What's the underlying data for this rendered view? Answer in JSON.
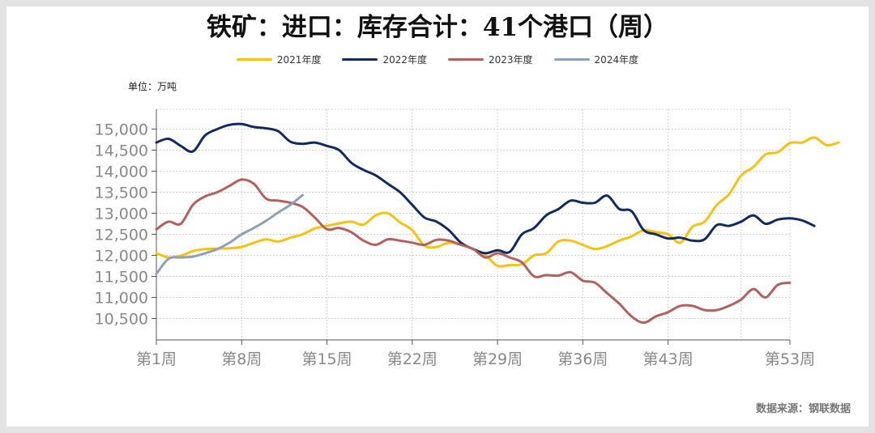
{
  "title": "铁矿：进口：库存合计：41个港口（周）",
  "unit": "单位：万吨",
  "source": "数据来源：钢联数据",
  "chart_data": {
    "type": "line",
    "title": "铁矿：进口：库存合计：41个港口（周）",
    "x_ticks": [
      "第1周",
      "第8周",
      "第15周",
      "第22周",
      "第29周",
      "第36周",
      "第43周",
      "第53周"
    ],
    "x_tick_weeks": [
      1,
      8,
      15,
      22,
      29,
      36,
      43,
      53
    ],
    "y_ticks": [
      "10,500",
      "11,000",
      "11,500",
      "12,000",
      "12,500",
      "13,000",
      "13,500",
      "14,000",
      "14,500",
      "15,000"
    ],
    "y_tick_values": [
      10500,
      11000,
      11500,
      12000,
      12500,
      13000,
      13500,
      14000,
      14500,
      15000
    ],
    "ylim": [
      10100,
      15250
    ],
    "xlim": [
      1,
      53
    ],
    "grid": true,
    "legend_position": "top-center",
    "series": [
      {
        "name": "2021年度",
        "color": "#f5c214",
        "values": [
          12050,
          11950,
          11990,
          12100,
          12150,
          12160,
          12170,
          12200,
          12300,
          12380,
          12330,
          12420,
          12500,
          12640,
          12700,
          12760,
          12800,
          12730,
          12950,
          13000,
          12780,
          12600,
          12230,
          12200,
          12300,
          12250,
          12150,
          12000,
          11750,
          11770,
          11790,
          12000,
          12050,
          12330,
          12350,
          12250,
          12150,
          12220,
          12350,
          12450,
          12600,
          12550,
          12500,
          12300,
          12680,
          12800,
          13200,
          13450,
          13900,
          14100,
          14400,
          14450,
          14670,
          14680,
          14800,
          14620,
          14680
        ]
      },
      {
        "name": "2022年度",
        "color": "#132a61",
        "values": [
          14680,
          14770,
          14600,
          14470,
          14850,
          15000,
          15100,
          15120,
          15050,
          15020,
          14950,
          14700,
          14650,
          14680,
          14600,
          14500,
          14200,
          14030,
          13900,
          13700,
          13500,
          13200,
          12900,
          12800,
          12600,
          12300,
          12150,
          12050,
          12120,
          12080,
          12500,
          12650,
          12950,
          13100,
          13300,
          13250,
          13250,
          13420,
          13100,
          13050,
          12600,
          12500,
          12400,
          12420,
          12350,
          12380,
          12720,
          12700,
          12800,
          12950,
          12750,
          12850,
          12880,
          12830,
          12700
        ]
      },
      {
        "name": "2023年度",
        "color": "#b4605e",
        "values": [
          12620,
          12800,
          12750,
          13200,
          13400,
          13500,
          13650,
          13800,
          13700,
          13350,
          13300,
          13250,
          13150,
          12900,
          12620,
          12650,
          12550,
          12350,
          12250,
          12380,
          12350,
          12300,
          12250,
          12370,
          12350,
          12250,
          12150,
          11950,
          12050,
          11950,
          11830,
          11500,
          11530,
          11520,
          11600,
          11400,
          11350,
          11100,
          10850,
          10550,
          10400,
          10550,
          10650,
          10800,
          10800,
          10700,
          10700,
          10800,
          10950,
          11200,
          11000,
          11300,
          11350
        ]
      },
      {
        "name": "2024年度",
        "color": "#8ca0bc",
        "values": [
          11560,
          11920,
          11950,
          11970,
          12050,
          12150,
          12300,
          12500,
          12650,
          12820,
          13020,
          13200,
          13430
        ]
      }
    ]
  }
}
